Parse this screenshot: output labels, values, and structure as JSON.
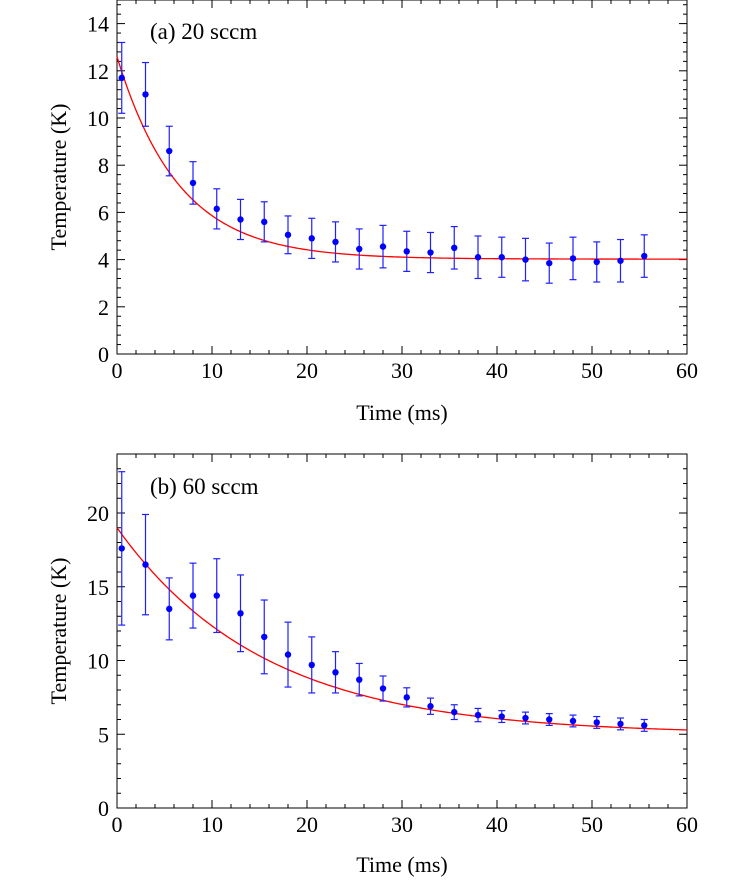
{
  "figure": {
    "colors": {
      "data": "#0000ff",
      "errorbar": "#2020ff",
      "fit": "#ff0000",
      "axes": "#000000"
    }
  },
  "chart_data": [
    {
      "type": "scatter",
      "panel_label": "(a) 20 sccm",
      "xlabel": "Time (ms)",
      "ylabel": "Temperature (K)",
      "xlim": [
        0,
        60
      ],
      "ylim": [
        0,
        15
      ],
      "xticks": [
        0,
        10,
        20,
        30,
        40,
        50,
        60
      ],
      "yticks": [
        0,
        2,
        4,
        6,
        8,
        10,
        12,
        14
      ],
      "x": [
        0.5,
        3,
        5.5,
        8,
        10.5,
        13,
        15.5,
        18,
        20.5,
        23,
        25.5,
        28,
        30.5,
        33,
        35.5,
        38,
        40.5,
        43,
        45.5,
        48,
        50.5,
        53,
        55.5
      ],
      "y": [
        11.7,
        11.0,
        8.6,
        7.25,
        6.15,
        5.7,
        5.6,
        5.05,
        4.9,
        4.75,
        4.45,
        4.55,
        4.35,
        4.3,
        4.5,
        4.1,
        4.1,
        4.0,
        3.85,
        4.05,
        3.9,
        3.95,
        4.15
      ],
      "yerr": [
        1.5,
        1.35,
        1.05,
        0.9,
        0.85,
        0.85,
        0.85,
        0.8,
        0.85,
        0.85,
        0.85,
        0.9,
        0.85,
        0.85,
        0.9,
        0.9,
        0.85,
        0.9,
        0.85,
        0.9,
        0.85,
        0.9,
        0.9
      ],
      "fit": {
        "model": "exponential",
        "y0": 12.6,
        "asymptote": 4.02,
        "tau": 6.5
      }
    },
    {
      "type": "scatter",
      "panel_label": "(b) 60 sccm",
      "xlabel": "Time (ms)",
      "ylabel": "Temperature (K)",
      "xlim": [
        0,
        60
      ],
      "ylim": [
        0,
        24
      ],
      "xticks": [
        0,
        10,
        20,
        30,
        40,
        50,
        60
      ],
      "yticks": [
        0,
        5,
        10,
        15,
        20
      ],
      "x": [
        0.5,
        3,
        5.5,
        8,
        10.5,
        13,
        15.5,
        18,
        20.5,
        23,
        25.5,
        28,
        30.5,
        33,
        35.5,
        38,
        40.5,
        43,
        45.5,
        48,
        50.5,
        53,
        55.5
      ],
      "y": [
        17.6,
        16.5,
        13.5,
        14.4,
        14.4,
        13.2,
        11.6,
        10.4,
        9.7,
        9.2,
        8.7,
        8.1,
        7.5,
        6.9,
        6.5,
        6.3,
        6.2,
        6.1,
        6.0,
        5.9,
        5.8,
        5.7,
        5.6
      ],
      "yerr": [
        5.2,
        3.4,
        2.1,
        2.2,
        2.5,
        2.6,
        2.5,
        2.2,
        1.9,
        1.4,
        1.1,
        0.85,
        0.65,
        0.55,
        0.5,
        0.45,
        0.4,
        0.4,
        0.4,
        0.4,
        0.4,
        0.4,
        0.4
      ],
      "fit": {
        "model": "exponential",
        "y0": 19.0,
        "asymptote": 5.0,
        "tau": 15.5
      }
    }
  ]
}
